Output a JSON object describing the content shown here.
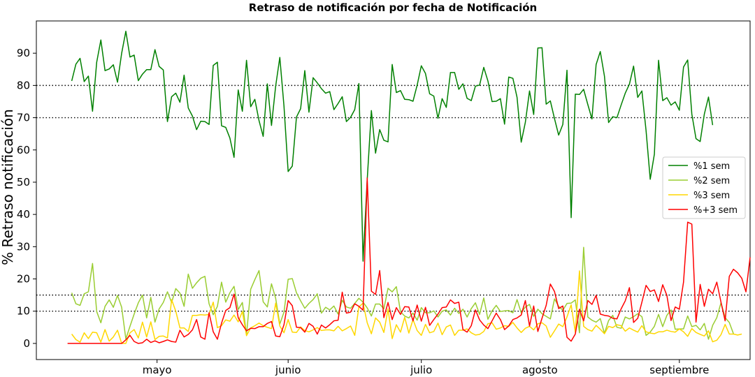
{
  "chart_data": {
    "type": "line",
    "title": "Retraso de notificación por fecha de Notificación",
    "xlabel": "",
    "ylabel": "% Retraso notificación",
    "x_ticks": [
      "mayo",
      "junio",
      "julio",
      "agosto",
      "septiembre"
    ],
    "x_tick_positions": [
      20.5,
      52,
      84,
      112.5,
      146
    ],
    "xlim": [
      -8.5,
      163
    ],
    "ylim": [
      -5,
      100
    ],
    "y_ticks": [
      0,
      10,
      20,
      30,
      40,
      50,
      60,
      70,
      80,
      90
    ],
    "reference_lines": [
      10,
      15,
      70,
      80
    ],
    "legend": {
      "placement": "right",
      "entries": [
        "%1 sem",
        "%2 sem",
        "%3 sem",
        "%+3 sem"
      ]
    },
    "grid": false,
    "series": [
      {
        "name": "%1 sem",
        "color": "#008000",
        "values": [
          81.4,
          86.6,
          88.4,
          81.2,
          82.9,
          72,
          87.2,
          94.1,
          84.6,
          85.1,
          86.4,
          81,
          90,
          96.8,
          88.8,
          89.4,
          81.5,
          83.5,
          84.9,
          84.9,
          91.1,
          85.9,
          84.8,
          68.8,
          76.5,
          77.6,
          74.8,
          83.2,
          73,
          70.5,
          66.3,
          68.9,
          68.8,
          67.9,
          86.2,
          87.2,
          67.5,
          67,
          63.7,
          57.7,
          78.6,
          72,
          87.8,
          73.4,
          75.7,
          69.1,
          64.2,
          80.5,
          67.6,
          79.8,
          88.7,
          73.6,
          53.3,
          55,
          70.2,
          72.8,
          84.6,
          71.7,
          82.4,
          80.8,
          79,
          77.6,
          78.1,
          72.5,
          74.4,
          76.5,
          68.8,
          70.1,
          72.5,
          80.6,
          25.5,
          50.8,
          72.2,
          59,
          66.3,
          63,
          62.5,
          86.5,
          77.8,
          78.4,
          75.7,
          75.6,
          75.1,
          80.1,
          86.1,
          83.7,
          77.4,
          76.7,
          69.8,
          75.9,
          73.2,
          84,
          84,
          78.8,
          80.5,
          76,
          75.3,
          79.8,
          80.1,
          85.6,
          81.4,
          75,
          75.1,
          75.9,
          68,
          82.6,
          82.2,
          76.3,
          62.4,
          68.6,
          78.3,
          71,
          91.6,
          91.7,
          74.2,
          75.2,
          69.7,
          64.6,
          67.9,
          84.7,
          39,
          77.3,
          77.2,
          78.8,
          74.1,
          69.6,
          86.5,
          90.5,
          82.9,
          68.5,
          70.3,
          70,
          73.9,
          77.6,
          80.4,
          86,
          76.3,
          78.3,
          66,
          50.9,
          58.7,
          87.8,
          75.3,
          76.2,
          73.9,
          74.9,
          72.3,
          85.7,
          87.9,
          71.1,
          63.5,
          62.6,
          71.1,
          76.4,
          67.7
        ],
        "values_start_x": 0
      },
      {
        "name": "%2 sem",
        "color": "#9acd32",
        "values": [
          15.7,
          12.3,
          11.8,
          15.4,
          16,
          24.8,
          9.9,
          6.4,
          11.5,
          13.5,
          11.2,
          14.9,
          11.2,
          1.4,
          5.3,
          9.1,
          12.6,
          15,
          7.9,
          14.3,
          6.6,
          10.7,
          12.7,
          16,
          12.7,
          17,
          15.6,
          11.5,
          21.5,
          17.1,
          18.8,
          20.2,
          20.8,
          12.3,
          8.9,
          11.5,
          19,
          12.8,
          15.7,
          17.7,
          10.5,
          12.7,
          2.7,
          16.8,
          19.8,
          22.6,
          12.9,
          11.3,
          18.5,
          14,
          6,
          9.7,
          19.9,
          20.1,
          15.7,
          13.2,
          10.9,
          12.4,
          13.6,
          15.4,
          9.4,
          11.2,
          10.4,
          11.6,
          9.1,
          13.4,
          11.3,
          10.9,
          12.4,
          14,
          12.8,
          11,
          8.5,
          12.2,
          12.2,
          10.7,
          17.1,
          16,
          17.6,
          9.8,
          8.5,
          7.9,
          9.4,
          7.2,
          11.1,
          9.5,
          9.5,
          10.1,
          8.2,
          10,
          10.4,
          8.8,
          10.9,
          9.3,
          10.6,
          8.2,
          10.8,
          12.6,
          9,
          14.1,
          7.5,
          10.1,
          11.8,
          9.9,
          10.1,
          10.2,
          9.5,
          13.6,
          9.5,
          11.3,
          12.1,
          8.4,
          10.6,
          9.2,
          8.4,
          7.6,
          13.8,
          11.5,
          10.3,
          12.4,
          12.5,
          13.5,
          3.3,
          29.8,
          8.2,
          7.2,
          6.6,
          7.7,
          3.1,
          7.1,
          8.7,
          5,
          4.7,
          8.2,
          7.6,
          8.3,
          9.2,
          8.3,
          2.5,
          3.5,
          5.3,
          9,
          5.2,
          8.7,
          10.4,
          4.4,
          4.5,
          4.5,
          8.5,
          5.2,
          5.6,
          4.2,
          6.2,
          1.3,
          5.6,
          8,
          12.6,
          8,
          6.5,
          3
        ],
        "values_start_x": 0
      },
      {
        "name": "%3 sem",
        "color": "#ffd700",
        "values": [
          2.9,
          1.2,
          0.4,
          3.3,
          1.5,
          3.5,
          3.3,
          0.4,
          4.3,
          0.7,
          2,
          4.1,
          0,
          0,
          3.3,
          4.3,
          1.7,
          6.6,
          2,
          6.7,
          1.2,
          2.2,
          2.3,
          1.7,
          13.6,
          10,
          4.8,
          4.8,
          3.7,
          8.7,
          8.7,
          8.9,
          8.8,
          9,
          12.8,
          4.9,
          5.5,
          7.3,
          6.9,
          8.8,
          6.7,
          9.9,
          2.4,
          4.8,
          5.5,
          6.3,
          5.5,
          5,
          4.6,
          12.5,
          5.4,
          3.3,
          7.4,
          3.5,
          3.4,
          5.1,
          4,
          3.6,
          4.2,
          4.9,
          4,
          4.2,
          4.2,
          3.9,
          5.3,
          3.9,
          4.6,
          5.4,
          2.5,
          11.3,
          12.5,
          6.4,
          3,
          7.9,
          6.6,
          3.4,
          10.7,
          1.5,
          5.8,
          3.5,
          8.1,
          3.2,
          7.4,
          4,
          2.5,
          5.9,
          3.3,
          3.7,
          6.3,
          2.7,
          5.1,
          5.7,
          2.5,
          4.1,
          4.1,
          4.5,
          3.3,
          2.6,
          2.8,
          3.7,
          6.1,
          6.4,
          4.4,
          4.8,
          5.5,
          5.3,
          6.5,
          4.8,
          3.4,
          4.7,
          5.3,
          4.2,
          6.1,
          6.4,
          5.4,
          1.9,
          3.9,
          6,
          5.2,
          8.2,
          12,
          3.4,
          22.5,
          5.3,
          4.3,
          3.8,
          5.6,
          4.4,
          3,
          5.3,
          4.9,
          5.8,
          5.5,
          3.8,
          4.8,
          4.1,
          3.5,
          5.5,
          3.6,
          3.2,
          3,
          3.6,
          3.6,
          4.1,
          3.7,
          3.5,
          4.5,
          3.6,
          2.2,
          4.6,
          3.4,
          2.8,
          2.3,
          3.9,
          0.5,
          1,
          2.7,
          5.9,
          2.9,
          2.9,
          2.6,
          2.9
        ],
        "values_start_x": 0
      },
      {
        "name": "%+3 sem",
        "color": "#ff0000",
        "values": [
          0,
          0,
          0,
          0,
          0,
          0,
          0,
          0,
          0,
          0,
          0,
          0,
          0,
          0,
          1.1,
          2.5,
          0.6,
          0,
          0.2,
          1.3,
          0.3,
          0.8,
          0.2,
          0.6,
          1.1,
          0.6,
          0.4,
          4.1,
          2,
          2.8,
          4.2,
          7.4,
          2,
          1.3,
          9.5,
          3.6,
          1.3,
          6.3,
          10.2,
          11.1,
          15.3,
          8,
          5.8,
          3.9,
          4.7,
          4.6,
          5.2,
          5.2,
          6.2,
          6.8,
          2.3,
          2.1,
          5.8,
          13.3,
          11.7,
          5,
          4.9,
          3.5,
          6.2,
          5.3,
          2.9,
          5.7,
          4.8,
          5.8,
          7,
          7.2,
          15.9,
          9.4,
          9.7,
          12.3,
          11.5,
          10.3,
          51.3,
          16.2,
          15.2,
          22.6,
          8,
          12.7,
          7.4,
          11.1,
          9,
          11.4,
          11.3,
          7,
          11.9,
          6.9,
          11.2,
          5.6,
          7.4,
          9.1,
          11.1,
          11.3,
          13.5,
          12.4,
          12.8,
          4.3,
          3.5,
          5.5,
          10.4,
          7.3,
          5.7,
          4.6,
          7,
          9.4,
          7.4,
          4.3,
          5.4,
          7.4,
          7.9,
          8.8,
          13.3,
          5.4,
          11.6,
          3.7,
          7.8,
          11.8,
          18.4,
          16.1,
          10.8,
          11.6,
          1.9,
          0.7,
          2.9,
          10.6,
          7,
          13.3,
          12.1,
          14.9,
          9.1,
          8.7,
          8.5,
          7.8,
          7.6,
          10.7,
          13.2,
          17.3,
          6.5,
          7.8,
          12.8,
          18,
          16.1,
          16.6,
          13,
          18.2,
          14.9,
          7.1,
          11.3,
          10.6,
          19,
          37.6,
          37,
          6.6,
          18.3,
          11.5,
          16.8,
          15.4,
          19,
          12.8,
          7,
          20.8,
          23,
          21.9,
          20.2,
          16,
          26.7
        ],
        "values_start_x": -1
      }
    ]
  }
}
